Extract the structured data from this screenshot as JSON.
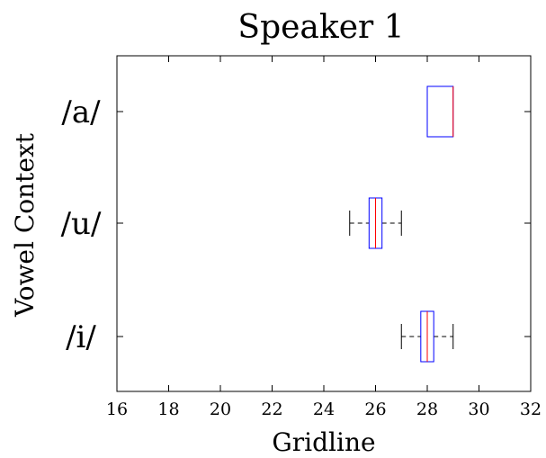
{
  "chart_data": {
    "type": "boxplot",
    "orientation": "horizontal",
    "title": "Speaker 1",
    "xlabel": "Gridline",
    "ylabel": "Vowel Context",
    "xlim": [
      16,
      32
    ],
    "xticks": [
      "16",
      "18",
      "20",
      "22",
      "24",
      "26",
      "28",
      "30",
      "32"
    ],
    "categories": [
      "/a/",
      "/u/",
      "/i/"
    ],
    "boxes": [
      {
        "category": "/a/",
        "whisker_low": 28,
        "q1": 28,
        "median": 29,
        "q3": 29,
        "whisker_high": 29
      },
      {
        "category": "/u/",
        "whisker_low": 25,
        "q1": 25.75,
        "median": 26,
        "q3": 26.25,
        "whisker_high": 27
      },
      {
        "category": "/i/",
        "whisker_low": 27,
        "q1": 27.75,
        "median": 28,
        "q3": 28.25,
        "whisker_high": 29
      }
    ],
    "colors": {
      "box": "#0000ff",
      "median": "#ff0000",
      "whisker": "#000000",
      "frame": "#000000"
    },
    "grid": false
  }
}
